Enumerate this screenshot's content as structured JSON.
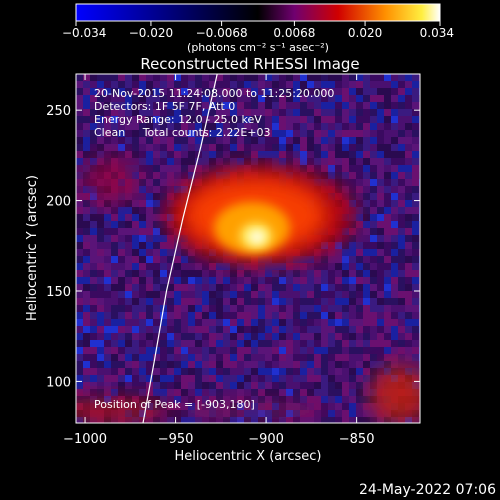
{
  "chart_data": {
    "type": "heatmap",
    "title": "Reconstructed RHESSI Image",
    "xlabel": "Heliocentric X (arcsec)",
    "ylabel": "Heliocentric Y (arcsec)",
    "xlim": [
      -1005,
      -815
    ],
    "ylim": [
      77,
      270
    ],
    "x_ticks": [
      {
        "value": -1000,
        "label": "−1000"
      },
      {
        "value": -950,
        "label": "−950"
      },
      {
        "value": -900,
        "label": "−900"
      },
      {
        "value": -850,
        "label": "−850"
      }
    ],
    "y_ticks": [
      {
        "value": 100,
        "label": "100"
      },
      {
        "value": 150,
        "label": "150"
      },
      {
        "value": 200,
        "label": "200"
      },
      {
        "value": 250,
        "label": "250"
      }
    ],
    "colorbar": {
      "min": -0.034,
      "max": 0.034,
      "ticks": [
        {
          "value": -0.034,
          "label": "−0.034"
        },
        {
          "value": -0.02,
          "label": "−0.020"
        },
        {
          "value": -0.0068,
          "label": "−0.0068"
        },
        {
          "value": 0.0068,
          "label": "0.0068"
        },
        {
          "value": 0.02,
          "label": "0.020"
        },
        {
          "value": 0.034,
          "label": "0.034"
        }
      ],
      "unit_label": "(photons cm⁻² s⁻¹ asec⁻²)"
    },
    "annotations": [
      "20-Nov-2015 11:24:08.000 to 11:25:20.000",
      "Detectors: 1F 5F 7F, Att 0",
      "Energy Range: 12.0 - 25.0 keV",
      "Clean     Total counts: 2.22E+03"
    ],
    "peak_label": "Position of Peak = [-903,180]",
    "peak": {
      "x": -903,
      "y": 180
    },
    "limb_curve": [
      [
        -968,
        77
      ],
      [
        -962,
        110
      ],
      [
        -955,
        150
      ],
      [
        -946,
        190
      ],
      [
        -936,
        230
      ],
      [
        -927,
        270
      ]
    ],
    "footer_date": "24-May-2022 07:06"
  }
}
